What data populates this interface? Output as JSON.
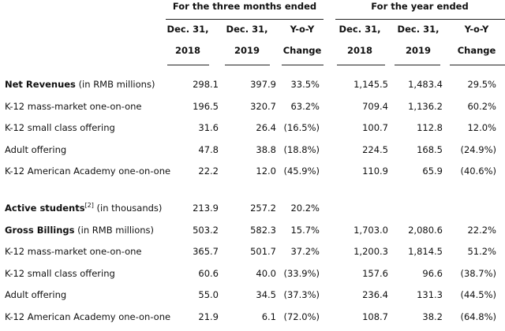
{
  "header": {
    "groups": [
      "For the three months ended",
      "For the year ended"
    ],
    "columns": [
      [
        "Dec. 31,",
        "2018"
      ],
      [
        "Dec. 31,",
        "2019"
      ],
      [
        "Y-o-Y",
        "Change"
      ],
      [
        "Dec. 31,",
        "2018"
      ],
      [
        "Dec. 31,",
        "2019"
      ],
      [
        "Y-o-Y",
        "Change"
      ]
    ]
  },
  "table": {
    "sections": [
      {
        "rows": [
          {
            "label": "Net Revenues",
            "bold": true,
            "note": "(in RMB millions)",
            "cells": [
              "298.1",
              "397.9",
              "33.5%",
              "1,145.5",
              "1,483.4",
              "29.5%"
            ]
          },
          {
            "label": "K-12 mass-market one-on-one",
            "cells": [
              "196.5",
              "320.7",
              "63.2%",
              "709.4",
              "1,136.2",
              "60.2%"
            ]
          },
          {
            "label": "K-12 small class offering",
            "cells": [
              "31.6",
              "26.4",
              "(16.5%)",
              "100.7",
              "112.8",
              "12.0%"
            ]
          },
          {
            "label": "Adult offering",
            "cells": [
              "47.8",
              "38.8",
              "(18.8%)",
              "224.5",
              "168.5",
              "(24.9%)"
            ]
          },
          {
            "label": "K-12 American Academy one-on-one",
            "cells": [
              "22.2",
              "12.0",
              "(45.9%)",
              "110.9",
              "65.9",
              "(40.6%)"
            ]
          }
        ]
      },
      {
        "rows": [
          {
            "label": "Active students",
            "bold": true,
            "footnote": "[2]",
            "note": "(in thousands)",
            "cells": [
              "213.9",
              "257.2",
              "20.2%"
            ]
          },
          {
            "label": "Gross Billings",
            "bold": true,
            "note": "(in RMB millions)",
            "cells": [
              "503.2",
              "582.3",
              "15.7%",
              "1,703.0",
              "2,080.6",
              "22.2%"
            ]
          },
          {
            "label": "K-12 mass-market one-on-one",
            "cells": [
              "365.7",
              "501.7",
              "37.2%",
              "1,200.3",
              "1,814.5",
              "51.2%"
            ]
          },
          {
            "label": "K-12 small class offering",
            "cells": [
              "60.6",
              "40.0",
              "(33.9%)",
              "157.6",
              "96.6",
              "(38.7%)"
            ]
          },
          {
            "label": "Adult offering",
            "cells": [
              "55.0",
              "34.5",
              "(37.3%)",
              "236.4",
              "131.3",
              "(44.5%)"
            ]
          },
          {
            "label": "K-12 American Academy one-on-one",
            "cells": [
              "21.9",
              "6.1",
              "(72.0%)",
              "108.7",
              "38.2",
              "(64.8%)"
            ]
          }
        ]
      }
    ]
  }
}
